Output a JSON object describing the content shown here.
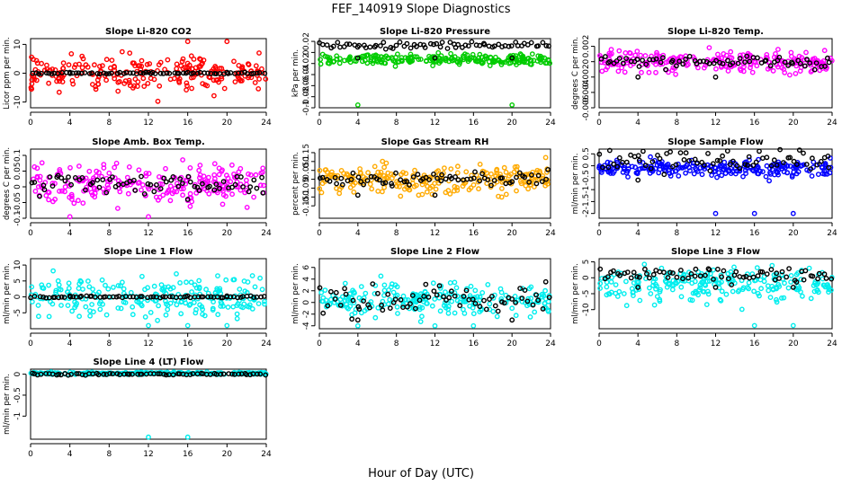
{
  "figure": {
    "title": "FEF_140919  Slope Diagnostics",
    "xlabel": "Hour of Day (UTC)"
  },
  "chart_data": [
    {
      "type": "scatter",
      "title": "Slope Li-820 CO2",
      "ylabel": "Licor ppm per min.",
      "xlim": [
        0,
        24
      ],
      "xticks": [
        0,
        4,
        8,
        12,
        16,
        20,
        24
      ],
      "ylim": [
        -12,
        12
      ],
      "yticks": [
        -10,
        0,
        10
      ],
      "series": [
        {
          "color": "#ff0000",
          "center": 0,
          "spread": 4.5,
          "outlier": 11
        },
        {
          "color": "#000000",
          "center": 0,
          "spread": 0.2,
          "outlier": 0.3
        }
      ]
    },
    {
      "type": "scatter",
      "title": "Slope Li-820 Pressure",
      "ylabel": "kPa per min.",
      "xlim": [
        0,
        24
      ],
      "xticks": [
        0,
        4,
        8,
        12,
        16,
        20,
        24
      ],
      "ylim": [
        -0.1,
        0.025
      ],
      "yticks": [
        -0.1,
        -0.08,
        -0.06,
        -0.04,
        -0.02,
        0,
        0.02
      ],
      "series": [
        {
          "color": "#00cc00",
          "center": -0.013,
          "spread": 0.007,
          "outlier": -0.095
        },
        {
          "color": "#000000",
          "center": 0.013,
          "spread": 0.004,
          "outlier": -0.01
        }
      ]
    },
    {
      "type": "scatter",
      "title": "Slope Li-820 Temp.",
      "ylabel": "degrees C per min.",
      "xlim": [
        0,
        24
      ],
      "xticks": [
        0,
        4,
        8,
        12,
        16,
        20,
        24
      ],
      "ylim": [
        -0.006,
        0.003
      ],
      "yticks": [
        -0.006,
        -0.004,
        -0.002,
        0,
        0.002
      ],
      "series": [
        {
          "color": "#ff00ff",
          "center": 0,
          "spread": 0.001,
          "outlier": -0.0055
        },
        {
          "color": "#000000",
          "center": 0,
          "spread": 0.0005,
          "outlier": -0.002
        }
      ]
    },
    {
      "type": "scatter",
      "title": "Slope Amb. Box Temp.",
      "ylabel": "degrees C per min.",
      "xlim": [
        0,
        24
      ],
      "xticks": [
        0,
        4,
        8,
        12,
        16,
        20,
        24
      ],
      "ylim": [
        -0.1,
        0.12
      ],
      "yticks": [
        -0.1,
        -0.05,
        0,
        0.05,
        0.1
      ],
      "series": [
        {
          "color": "#ff00ff",
          "center": 0.01,
          "spread": 0.045,
          "outlier": -0.095
        },
        {
          "color": "#000000",
          "center": 0.01,
          "spread": 0.025,
          "outlier": -0.04
        }
      ]
    },
    {
      "type": "scatter",
      "title": "Slope Gas Stream RH",
      "ylabel": "percent per min.",
      "xlim": [
        0,
        24
      ],
      "xticks": [
        0,
        4,
        8,
        12,
        16,
        20,
        24
      ],
      "ylim": [
        -0.22,
        0.17
      ],
      "yticks": [
        -0.15,
        -0.1,
        -0.05,
        0,
        0.05,
        0.1,
        0.15
      ],
      "series": [
        {
          "color": "#ffaa00",
          "center": 0,
          "spread": 0.06,
          "outlier": -0.2
        },
        {
          "color": "#000000",
          "center": 0,
          "spread": 0.03,
          "outlier": -0.09
        }
      ]
    },
    {
      "type": "scatter",
      "title": "Slope Sample Flow",
      "ylabel": "ml/min per min.",
      "xlim": [
        0,
        24
      ],
      "xticks": [
        0,
        4,
        8,
        12,
        16,
        20,
        24
      ],
      "ylim": [
        -2.2,
        0.7
      ],
      "yticks": [
        -2,
        -1.5,
        -1,
        -0.5,
        0,
        0.5
      ],
      "series": [
        {
          "color": "#0000ff",
          "center": -0.1,
          "spread": 0.25,
          "outlier": -2
        },
        {
          "color": "#000000",
          "center": 0.2,
          "spread": 0.3,
          "outlier": -0.6
        }
      ]
    },
    {
      "type": "scatter",
      "title": "Slope Line 1 Flow",
      "ylabel": "ml/min per min.",
      "xlim": [
        0,
        24
      ],
      "xticks": [
        0,
        4,
        8,
        12,
        16,
        20,
        24
      ],
      "ylim": [
        -10,
        12
      ],
      "yticks": [
        -5,
        0,
        5,
        10
      ],
      "series": [
        {
          "color": "#00eeee",
          "center": 0,
          "spread": 4,
          "outlier": -9
        },
        {
          "color": "#000000",
          "center": 0,
          "spread": 0.2,
          "outlier": 0.3
        }
      ]
    },
    {
      "type": "scatter",
      "title": "Slope Line 2 Flow",
      "ylabel": "ml/min per min.",
      "xlim": [
        0,
        24
      ],
      "xticks": [
        0,
        4,
        8,
        12,
        16,
        20,
        24
      ],
      "ylim": [
        -4.5,
        7.5
      ],
      "yticks": [
        -4,
        -2,
        0,
        2,
        4,
        6
      ],
      "series": [
        {
          "color": "#00eeee",
          "center": 0.5,
          "spread": 2,
          "outlier": -4
        },
        {
          "color": "#000000",
          "center": 0.5,
          "spread": 1.8,
          "outlier": -3
        }
      ]
    },
    {
      "type": "scatter",
      "title": "Slope Line 3 Flow",
      "ylabel": "ml/min per min.",
      "xlim": [
        0,
        24
      ],
      "xticks": [
        0,
        4,
        8,
        12,
        16,
        20,
        24
      ],
      "ylim": [
        -16,
        6
      ],
      "yticks": [
        -10,
        -5,
        0,
        5
      ],
      "series": [
        {
          "color": "#00eeee",
          "center": -2,
          "spread": 3.5,
          "outlier": -15
        },
        {
          "color": "#000000",
          "center": 1,
          "spread": 1.5,
          "outlier": -3
        }
      ]
    },
    {
      "type": "scatter",
      "title": "Slope Line 4 (LT) Flow",
      "ylabel": "ml/min per min.",
      "xlim": [
        0,
        24
      ],
      "xticks": [
        0,
        4,
        8,
        12,
        16,
        20,
        24
      ],
      "ylim": [
        -1.55,
        0.12
      ],
      "yticks": [
        -1,
        -0.5,
        0
      ],
      "series": [
        {
          "color": "#00eeee",
          "center": 0.02,
          "spread": 0.02,
          "outlier": -1.5
        },
        {
          "color": "#000000",
          "center": 0,
          "spread": 0.015,
          "outlier": -0.05
        }
      ]
    }
  ]
}
